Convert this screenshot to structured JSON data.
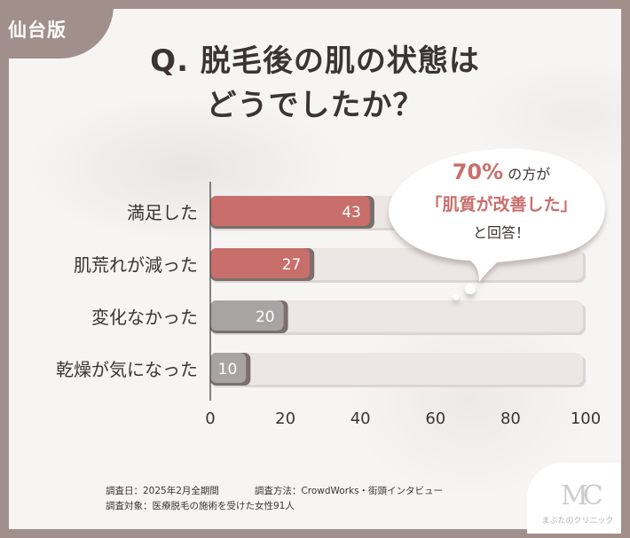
{
  "badge": "仙台版",
  "title": {
    "line1": "Q. 脱毛後の肌の状態は",
    "line2": "どうでしたか？"
  },
  "callout": {
    "percent": "70%",
    "suffix": "の方が",
    "highlight": "「肌質が改善した」",
    "closing": "と回答！"
  },
  "chart_data": {
    "type": "bar",
    "orientation": "horizontal",
    "categories": [
      "満足した",
      "肌荒れが減った",
      "変化なかった",
      "乾燥が気になった"
    ],
    "values": [
      43,
      27,
      20,
      10
    ],
    "xlim": [
      0,
      100
    ],
    "xticks": [
      "0",
      "20",
      "40",
      "60",
      "80",
      "100"
    ],
    "title": "Q. 脱毛後の肌の状態はどうでしたか？",
    "xlabel": "",
    "ylabel": "",
    "colors": {
      "highlight": "#c86f6b",
      "neutral": "#a9a4a4",
      "track": "#ece6e4",
      "shadow": "#7a6f6c"
    }
  },
  "notes": {
    "date": "調査日：2025年2月全期間",
    "method": "調査方法：CrowdWorks・街頭インタビュー",
    "subjects": "調査対象：医療脱毛の施術を受けた女性91人"
  },
  "logo": {
    "mark": "MC",
    "name": "まぶたのクリニック"
  },
  "colors": {
    "frame": "#a18f8b",
    "panel": "#f6f5f4",
    "text": "#3b3432",
    "accent": "#c86f6b"
  }
}
